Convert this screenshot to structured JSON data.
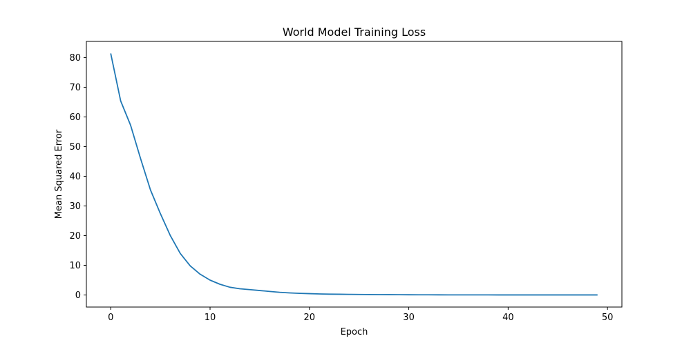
{
  "chart_data": {
    "type": "line",
    "title": "World Model Training Loss",
    "xlabel": "Epoch",
    "ylabel": "Mean Squared Error",
    "xlim": [
      -2.45,
      51.45
    ],
    "ylim": [
      -4.07,
      85.45
    ],
    "xticks": [
      0,
      10,
      20,
      30,
      40,
      50
    ],
    "yticks": [
      0,
      10,
      20,
      30,
      40,
      50,
      60,
      70,
      80
    ],
    "grid": false,
    "series": [
      {
        "color": "#1f77b4",
        "x": [
          0,
          1,
          2,
          3,
          4,
          5,
          6,
          7,
          8,
          9,
          10,
          11,
          12,
          13,
          14,
          15,
          16,
          17,
          18,
          19,
          20,
          21,
          22,
          23,
          24,
          25,
          26,
          27,
          28,
          29,
          30,
          31,
          32,
          33,
          34,
          35,
          36,
          37,
          38,
          39,
          40,
          41,
          42,
          43,
          44,
          45,
          46,
          47,
          48,
          49
        ],
        "y": [
          81.4,
          65.4,
          57.2,
          46.0,
          35.4,
          27.4,
          20.0,
          14.0,
          9.8,
          7.0,
          5.0,
          3.6,
          2.6,
          2.1,
          1.8,
          1.5,
          1.2,
          0.9,
          0.7,
          0.55,
          0.45,
          0.35,
          0.28,
          0.24,
          0.2,
          0.18,
          0.15,
          0.12,
          0.1,
          0.08,
          0.07,
          0.06,
          0.05,
          0.04,
          0.035,
          0.03,
          0.025,
          0.02,
          0.02,
          0.015,
          0.015,
          0.01,
          0.01,
          0.01,
          0.01,
          0.01,
          0.01,
          0.01,
          0.01,
          0.01
        ]
      }
    ]
  }
}
